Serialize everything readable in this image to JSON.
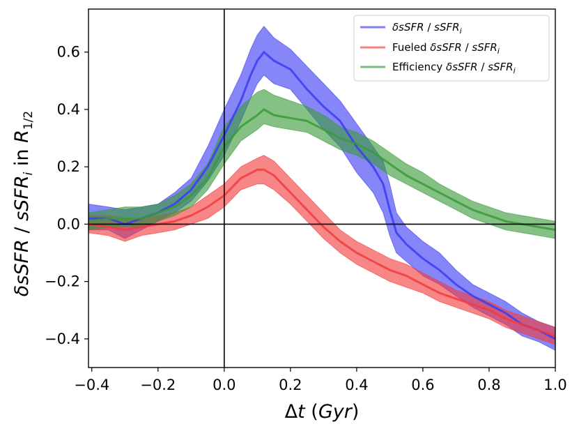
{
  "chart_data": {
    "type": "line",
    "xlabel": "Δt (Gyr)",
    "ylabel": "δsSFR / sSFR_i in R_1/2",
    "xlim": [
      -0.41,
      1.0
    ],
    "ylim": [
      -0.5,
      0.75
    ],
    "xticks": [
      -0.4,
      -0.2,
      0.0,
      0.2,
      0.4,
      0.6,
      0.8,
      1.0
    ],
    "xtick_labels": [
      "−0.4",
      "−0.2",
      "0.0",
      "0.2",
      "0.4",
      "0.6",
      "0.8",
      "1.0"
    ],
    "yticks": [
      -0.4,
      -0.2,
      0.0,
      0.2,
      0.4,
      0.6
    ],
    "ytick_labels": [
      "−0.4",
      "−0.2",
      "0.0",
      "0.2",
      "0.4",
      "0.6"
    ],
    "reference_lines": {
      "x": 0.0,
      "y": 0.0
    },
    "legend_position": "top-right",
    "series": [
      {
        "name": "δsSFR / sSFR_i",
        "color": "#3b3bf5",
        "x": [
          -0.41,
          -0.35,
          -0.3,
          -0.25,
          -0.2,
          -0.15,
          -0.1,
          -0.05,
          0.0,
          0.05,
          0.08,
          0.1,
          0.12,
          0.15,
          0.2,
          0.25,
          0.3,
          0.35,
          0.4,
          0.45,
          0.48,
          0.5,
          0.52,
          0.55,
          0.6,
          0.65,
          0.7,
          0.75,
          0.8,
          0.85,
          0.9,
          0.95,
          1.0
        ],
        "y": [
          0.02,
          0.02,
          0.0,
          0.02,
          0.04,
          0.07,
          0.12,
          0.2,
          0.31,
          0.43,
          0.52,
          0.57,
          0.6,
          0.57,
          0.54,
          0.47,
          0.41,
          0.36,
          0.27,
          0.2,
          0.14,
          0.05,
          -0.03,
          -0.07,
          -0.12,
          -0.16,
          -0.21,
          -0.25,
          -0.28,
          -0.31,
          -0.35,
          -0.37,
          -0.4
        ],
        "lower": [
          -0.02,
          -0.02,
          -0.05,
          -0.02,
          0.01,
          0.04,
          0.08,
          0.15,
          0.24,
          0.36,
          0.44,
          0.49,
          0.52,
          0.49,
          0.47,
          0.4,
          0.33,
          0.27,
          0.18,
          0.11,
          0.04,
          -0.04,
          -0.1,
          -0.13,
          -0.18,
          -0.21,
          -0.25,
          -0.29,
          -0.32,
          -0.35,
          -0.39,
          -0.41,
          -0.44
        ],
        "upper": [
          0.07,
          0.06,
          0.05,
          0.06,
          0.07,
          0.11,
          0.16,
          0.27,
          0.4,
          0.52,
          0.61,
          0.66,
          0.69,
          0.65,
          0.61,
          0.55,
          0.49,
          0.43,
          0.35,
          0.27,
          0.22,
          0.14,
          0.04,
          -0.01,
          -0.06,
          -0.1,
          -0.16,
          -0.21,
          -0.24,
          -0.27,
          -0.31,
          -0.34,
          -0.36
        ]
      },
      {
        "name": "Fueled δsSFR / sSFR_i",
        "color": "#f23b3b",
        "x": [
          -0.41,
          -0.35,
          -0.3,
          -0.25,
          -0.2,
          -0.15,
          -0.1,
          -0.05,
          0.0,
          0.05,
          0.1,
          0.12,
          0.15,
          0.2,
          0.25,
          0.3,
          0.35,
          0.4,
          0.45,
          0.5,
          0.55,
          0.6,
          0.65,
          0.7,
          0.75,
          0.8,
          0.85,
          0.9,
          0.95,
          1.0
        ],
        "y": [
          0.0,
          -0.01,
          -0.02,
          -0.01,
          0.0,
          0.01,
          0.03,
          0.06,
          0.1,
          0.16,
          0.19,
          0.19,
          0.17,
          0.11,
          0.05,
          -0.01,
          -0.06,
          -0.1,
          -0.13,
          -0.16,
          -0.18,
          -0.21,
          -0.24,
          -0.26,
          -0.28,
          -0.3,
          -0.33,
          -0.35,
          -0.37,
          -0.39
        ],
        "lower": [
          -0.03,
          -0.04,
          -0.06,
          -0.04,
          -0.03,
          -0.02,
          0.0,
          0.02,
          0.06,
          0.12,
          0.14,
          0.14,
          0.12,
          0.07,
          0.01,
          -0.05,
          -0.1,
          -0.14,
          -0.17,
          -0.2,
          -0.22,
          -0.24,
          -0.27,
          -0.29,
          -0.31,
          -0.33,
          -0.36,
          -0.38,
          -0.4,
          -0.42
        ],
        "upper": [
          0.03,
          0.03,
          0.02,
          0.02,
          0.03,
          0.04,
          0.06,
          0.1,
          0.14,
          0.2,
          0.23,
          0.24,
          0.22,
          0.16,
          0.1,
          0.04,
          -0.02,
          -0.06,
          -0.09,
          -0.12,
          -0.14,
          -0.17,
          -0.2,
          -0.23,
          -0.25,
          -0.27,
          -0.3,
          -0.32,
          -0.34,
          -0.36
        ]
      },
      {
        "name": "Efficiency δsSFR / sSFR_i",
        "color": "#3a9a3a",
        "x": [
          -0.41,
          -0.35,
          -0.3,
          -0.25,
          -0.2,
          -0.15,
          -0.1,
          -0.05,
          0.0,
          0.05,
          0.1,
          0.12,
          0.15,
          0.2,
          0.25,
          0.3,
          0.35,
          0.4,
          0.45,
          0.5,
          0.55,
          0.6,
          0.65,
          0.7,
          0.75,
          0.8,
          0.85,
          0.9,
          0.95,
          1.0
        ],
        "y": [
          0.01,
          0.02,
          0.02,
          0.02,
          0.04,
          0.06,
          0.1,
          0.16,
          0.27,
          0.34,
          0.38,
          0.4,
          0.38,
          0.37,
          0.36,
          0.33,
          0.3,
          0.28,
          0.25,
          0.21,
          0.17,
          0.14,
          0.11,
          0.08,
          0.05,
          0.03,
          0.01,
          0.0,
          -0.01,
          -0.02
        ],
        "lower": [
          -0.02,
          -0.01,
          -0.01,
          -0.01,
          0.01,
          0.03,
          0.06,
          0.12,
          0.21,
          0.29,
          0.33,
          0.35,
          0.34,
          0.33,
          0.32,
          0.29,
          0.26,
          0.24,
          0.21,
          0.17,
          0.14,
          0.11,
          0.08,
          0.05,
          0.02,
          0.0,
          -0.02,
          -0.03,
          -0.04,
          -0.05
        ],
        "upper": [
          0.04,
          0.05,
          0.06,
          0.06,
          0.07,
          0.1,
          0.14,
          0.21,
          0.34,
          0.41,
          0.46,
          0.47,
          0.45,
          0.43,
          0.41,
          0.38,
          0.34,
          0.32,
          0.29,
          0.25,
          0.21,
          0.18,
          0.14,
          0.11,
          0.08,
          0.06,
          0.04,
          0.03,
          0.02,
          0.01
        ]
      }
    ]
  }
}
